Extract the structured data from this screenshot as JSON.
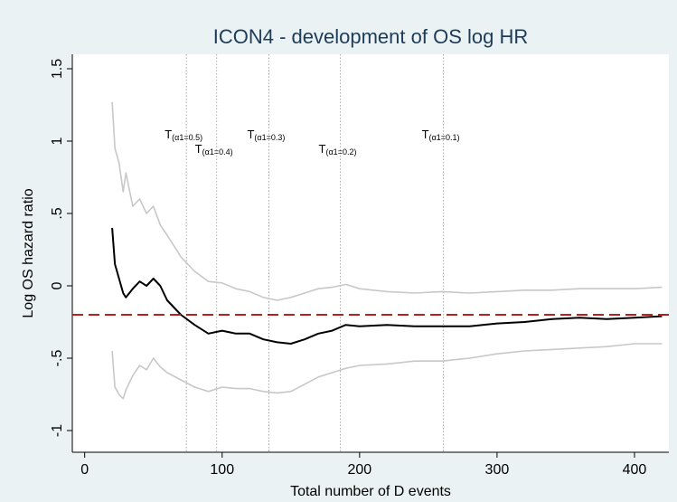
{
  "chart_data": {
    "type": "line",
    "title": "ICON4 - development of OS log HR",
    "x_label": "Total number of D events",
    "y_label": "Log OS hazard ratio",
    "x": [
      20,
      22,
      25,
      28,
      30,
      35,
      40,
      45,
      50,
      55,
      60,
      70,
      80,
      90,
      100,
      110,
      120,
      130,
      140,
      150,
      160,
      170,
      180,
      190,
      200,
      220,
      240,
      260,
      280,
      300,
      320,
      340,
      360,
      380,
      400,
      420
    ],
    "series": [
      {
        "color": "#c8c8c8",
        "values": [
          1.27,
          0.95,
          0.85,
          0.65,
          0.78,
          0.55,
          0.6,
          0.5,
          0.55,
          0.42,
          0.35,
          0.2,
          0.1,
          0.03,
          0.02,
          -0.02,
          -0.04,
          -0.08,
          -0.1,
          -0.08,
          -0.05,
          -0.02,
          -0.01,
          0.01,
          -0.02,
          -0.04,
          -0.05,
          -0.04,
          -0.05,
          -0.04,
          -0.03,
          -0.03,
          -0.02,
          -0.02,
          -0.02,
          -0.01
        ]
      },
      {
        "color": "#c8c8c8",
        "values": [
          -0.45,
          -0.7,
          -0.75,
          -0.78,
          -0.72,
          -0.62,
          -0.55,
          -0.58,
          -0.5,
          -0.56,
          -0.6,
          -0.65,
          -0.7,
          -0.73,
          -0.7,
          -0.71,
          -0.71,
          -0.73,
          -0.74,
          -0.73,
          -0.68,
          -0.63,
          -0.6,
          -0.57,
          -0.55,
          -0.54,
          -0.52,
          -0.52,
          -0.5,
          -0.47,
          -0.45,
          -0.44,
          -0.43,
          -0.42,
          -0.4,
          -0.4
        ]
      },
      {
        "color": "#000000",
        "values": [
          0.4,
          0.15,
          0.05,
          -0.05,
          -0.08,
          -0.02,
          0.03,
          0.0,
          0.05,
          0.0,
          -0.1,
          -0.2,
          -0.27,
          -0.33,
          -0.31,
          -0.33,
          -0.33,
          -0.37,
          -0.39,
          -0.4,
          -0.37,
          -0.33,
          -0.31,
          -0.27,
          -0.28,
          -0.27,
          -0.28,
          -0.28,
          -0.28,
          -0.26,
          -0.25,
          -0.23,
          -0.22,
          -0.23,
          -0.22,
          -0.21
        ]
      }
    ],
    "reference_line": {
      "y": -0.2,
      "color": "#b22222"
    },
    "annotations": [
      {
        "label": "T",
        "sub": "(α1=0.5)",
        "x": 74
      },
      {
        "label": "T",
        "sub": "(α1=0.4)",
        "x": 96
      },
      {
        "label": "T",
        "sub": "(α1=0.3)",
        "x": 134
      },
      {
        "label": "T",
        "sub": "(α1=0.2)",
        "x": 186
      },
      {
        "label": "T",
        "sub": "(α1=0.1)",
        "x": 261
      }
    ],
    "xlim": [
      -9,
      425
    ],
    "ylim": [
      -1.15,
      1.6
    ],
    "xticks": [
      0,
      100,
      200,
      300,
      400
    ],
    "yticks": [
      1.5,
      1,
      {
        "value": 0.5,
        "label": ".5"
      },
      0,
      {
        "value": -0.5,
        "label": "-.5"
      },
      -1
    ],
    "grid": false
  }
}
